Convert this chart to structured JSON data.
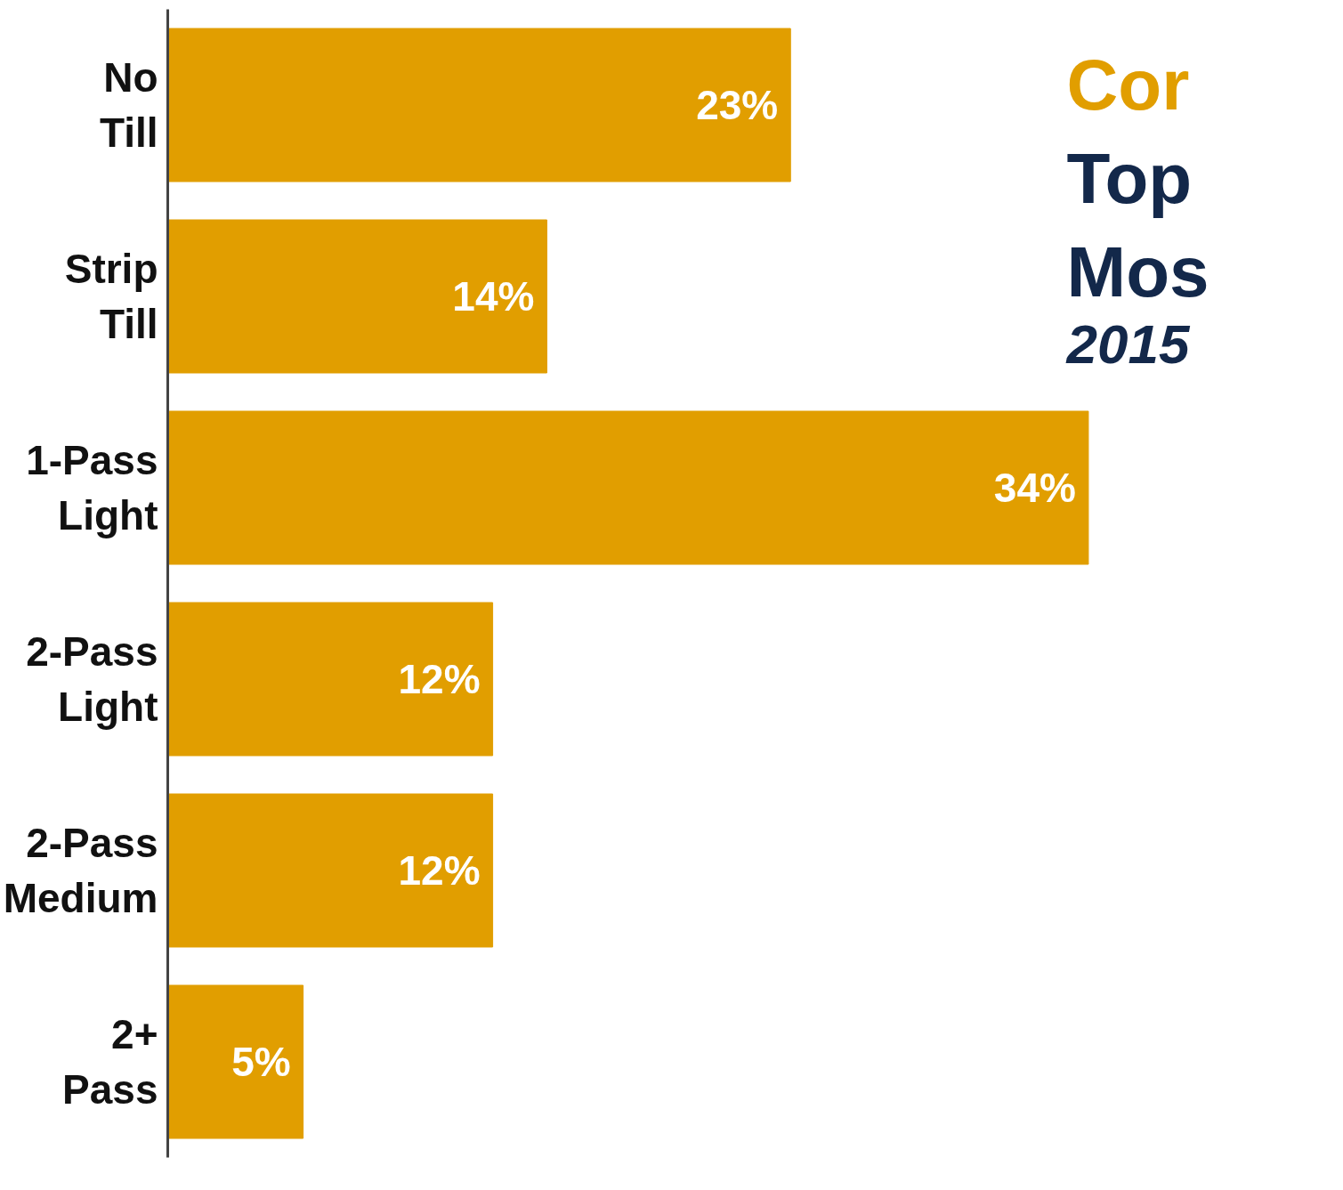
{
  "chart_data": {
    "type": "bar",
    "orientation": "horizontal",
    "title": "Cor",
    "annotations": [
      "Top",
      "Mos",
      "2015"
    ],
    "categories": [
      "No Till",
      "Strip Till",
      "1-Pass Light",
      "2-Pass Light",
      "2-Pass Medium",
      "2+ Pass"
    ],
    "values": [
      23,
      14,
      34,
      12,
      12,
      5
    ],
    "value_labels": [
      "23%",
      "14%",
      "34%",
      "12%",
      "12%",
      "5%"
    ],
    "color": "#e19e00",
    "grid": false
  }
}
